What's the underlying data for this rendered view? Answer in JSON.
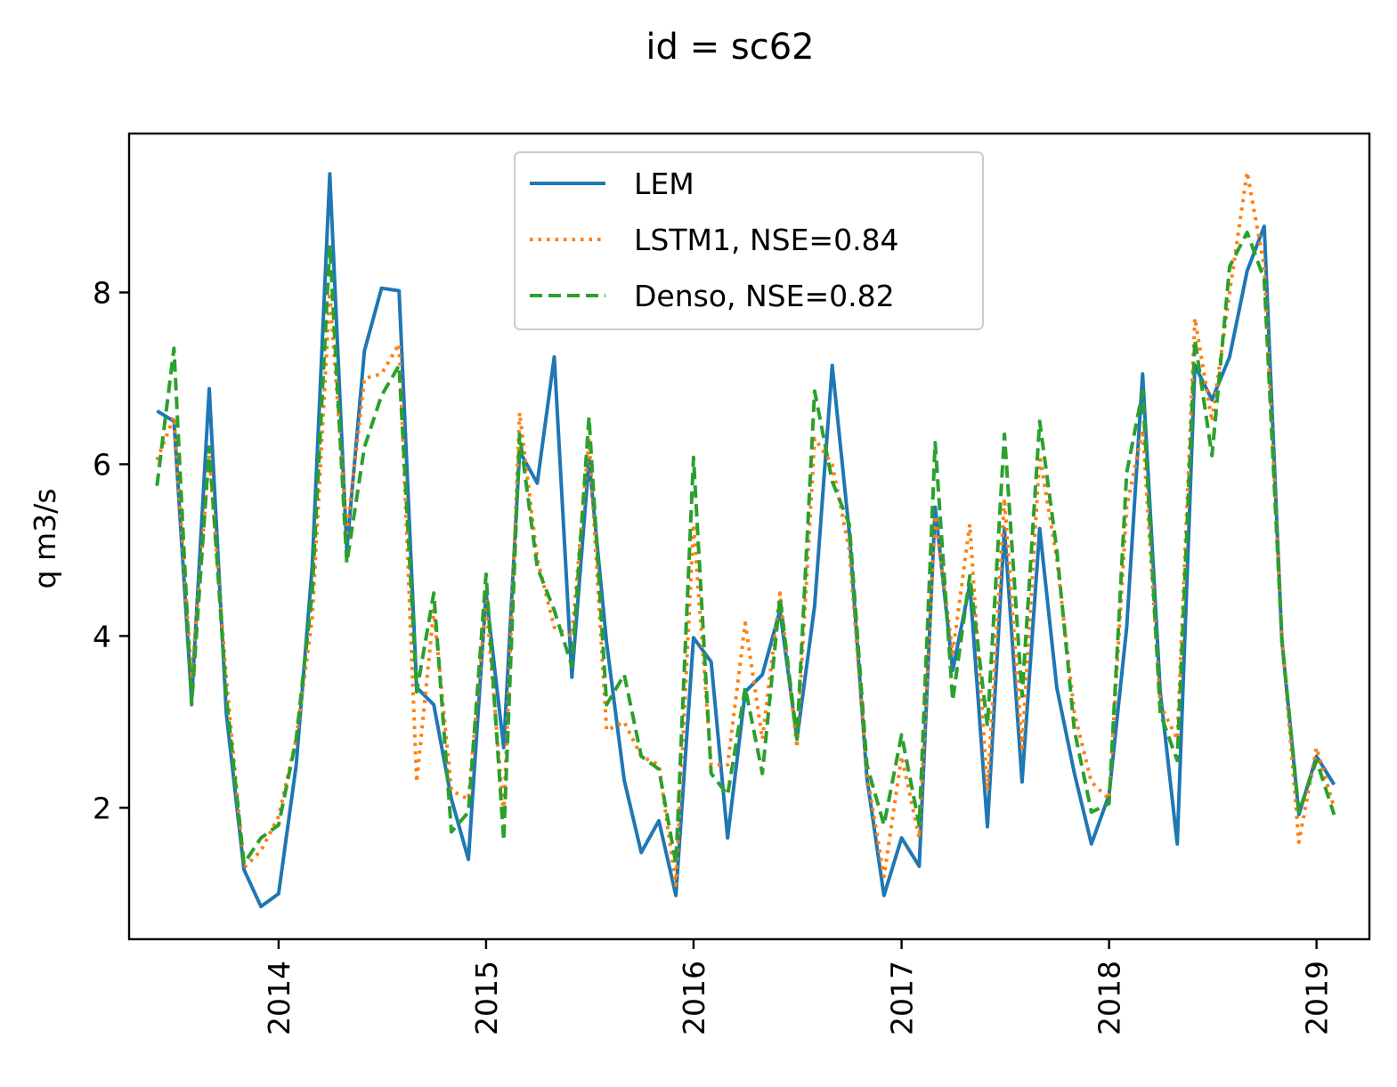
{
  "chart_data": {
    "type": "line",
    "title": "id = sc62",
    "xlabel": "",
    "ylabel": "q m3/s",
    "x_start": "2013-06",
    "x_step": "1 month",
    "x_ticks": [
      "2014",
      "2015",
      "2016",
      "2017",
      "2018",
      "2019"
    ],
    "y_ticks": [
      "2",
      "4",
      "6",
      "8"
    ],
    "xlim": [
      "2013-04-13",
      "2019-04-04"
    ],
    "ylim": [
      0.47,
      9.85
    ],
    "grid": false,
    "legend_position": "upper center",
    "series": [
      {
        "name": "LEM",
        "color": "#1f77b4",
        "linestyle": "solid",
        "values": [
          6.62,
          6.5,
          3.25,
          6.88,
          3.1,
          1.28,
          0.85,
          1.0,
          2.5,
          4.8,
          9.38,
          5.0,
          7.32,
          8.05,
          8.02,
          3.4,
          3.2,
          2.1,
          1.4,
          4.5,
          2.7,
          6.15,
          5.78,
          7.25,
          3.52,
          6.05,
          3.92,
          2.32,
          1.48,
          1.85,
          0.98,
          3.98,
          3.7,
          1.65,
          3.35,
          3.55,
          4.3,
          2.8,
          4.35,
          7.15,
          5.2,
          2.35,
          0.98,
          1.65,
          1.32,
          5.5,
          3.6,
          4.6,
          1.78,
          5.25,
          2.3,
          5.25,
          3.4,
          2.4,
          1.58,
          2.15,
          4.1,
          7.05,
          3.35,
          1.58,
          7.15,
          6.75,
          7.25,
          8.25,
          8.77,
          3.95,
          1.92,
          2.6,
          2.27
        ]
      },
      {
        "name": "LSTM1, NSE=0.84",
        "color": "#ff7f0e",
        "linestyle": "dotted",
        "values": [
          6.05,
          6.55,
          3.5,
          6.1,
          3.5,
          1.3,
          1.5,
          1.9,
          2.8,
          4.2,
          8.0,
          5.2,
          7.0,
          7.05,
          7.4,
          2.3,
          4.3,
          2.2,
          2.1,
          4.4,
          1.9,
          6.6,
          4.9,
          4.1,
          4.0,
          6.3,
          2.9,
          3.0,
          2.6,
          2.5,
          1.1,
          5.3,
          2.5,
          2.5,
          4.15,
          2.8,
          4.5,
          2.7,
          6.3,
          6.0,
          5.0,
          2.4,
          1.2,
          2.6,
          1.65,
          5.4,
          3.8,
          5.3,
          2.2,
          5.6,
          2.7,
          6.1,
          4.9,
          3.1,
          2.3,
          2.1,
          5.5,
          6.4,
          3.2,
          2.8,
          7.7,
          6.5,
          8.0,
          9.4,
          8.3,
          4.0,
          1.6,
          2.7,
          2.0
        ]
      },
      {
        "name": "Denso, NSE=0.82",
        "color": "#2ca02c",
        "linestyle": "dashed",
        "values": [
          5.75,
          7.35,
          3.2,
          6.2,
          3.3,
          1.35,
          1.65,
          1.8,
          2.8,
          4.5,
          8.55,
          4.85,
          6.2,
          6.8,
          7.15,
          3.35,
          4.5,
          1.72,
          1.95,
          4.72,
          1.62,
          6.35,
          4.8,
          4.3,
          3.65,
          6.55,
          3.2,
          3.55,
          2.6,
          2.45,
          1.35,
          6.08,
          2.4,
          2.15,
          3.4,
          2.4,
          4.45,
          2.8,
          6.85,
          5.8,
          5.3,
          2.5,
          1.8,
          2.85,
          1.8,
          6.25,
          3.25,
          4.7,
          2.95,
          6.35,
          3.3,
          6.5,
          5.0,
          2.9,
          1.95,
          2.05,
          5.9,
          6.85,
          3.1,
          2.55,
          7.45,
          6.1,
          8.3,
          8.7,
          8.15,
          3.95,
          1.95,
          2.55,
          1.92
        ]
      }
    ]
  }
}
